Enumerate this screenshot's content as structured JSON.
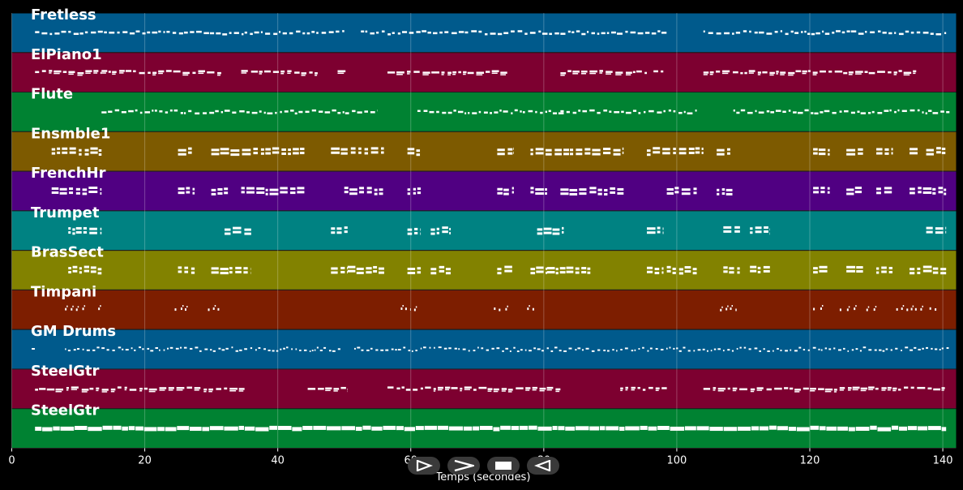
{
  "chart_data": {
    "type": "piano-roll",
    "xlabel": "Temps (secondes)",
    "xlim": [
      0,
      142
    ],
    "xticks": [
      0,
      20,
      40,
      60,
      80,
      100,
      120,
      140
    ],
    "grid": true,
    "tracks": [
      {
        "name": "Fretless",
        "color": "#005a8c",
        "pattern": "line",
        "segments": [
          [
            3.5,
            50
          ],
          [
            52.5,
            98.5
          ],
          [
            104,
            140.5
          ]
        ]
      },
      {
        "name": "ElPiano1",
        "color": "#7d0030",
        "pattern": "chords",
        "segments": [
          [
            3.5,
            13.5
          ],
          [
            13.5,
            31.5
          ],
          [
            34.5,
            46
          ],
          [
            49,
            50.5
          ],
          [
            56.5,
            74.5
          ],
          [
            82.5,
            95.5
          ],
          [
            96.5,
            98
          ],
          [
            104,
            136
          ]
        ]
      },
      {
        "name": "Flute",
        "color": "#008232",
        "pattern": "line",
        "segments": [
          [
            13.5,
            55
          ],
          [
            61,
            83
          ],
          [
            82.5,
            103
          ],
          [
            108.5,
            141
          ]
        ]
      },
      {
        "name": "Ensmble1",
        "color": "#7d5a00",
        "pattern": "blocks",
        "segments": [
          [
            6,
            13.5
          ],
          [
            25,
            27.5
          ],
          [
            30,
            44
          ],
          [
            48,
            56
          ],
          [
            59.5,
            61.5
          ],
          [
            73,
            75.5
          ],
          [
            78,
            92
          ],
          [
            95.5,
            104
          ],
          [
            106,
            108.5
          ],
          [
            120.5,
            123
          ],
          [
            125.5,
            128
          ],
          [
            130,
            132.5
          ],
          [
            135,
            136.5
          ],
          [
            137.5,
            140.5
          ]
        ]
      },
      {
        "name": "FrenchHr",
        "color": "#500082",
        "pattern": "blocks",
        "segments": [
          [
            6,
            13.5
          ],
          [
            25,
            27.5
          ],
          [
            30,
            32.5
          ],
          [
            34.5,
            44
          ],
          [
            50,
            56
          ],
          [
            59.5,
            61.5
          ],
          [
            73,
            75.5
          ],
          [
            78,
            80.5
          ],
          [
            82.5,
            92
          ],
          [
            98.5,
            103
          ],
          [
            106,
            108.5
          ],
          [
            120.5,
            123
          ],
          [
            125.5,
            128
          ],
          [
            130,
            132.5
          ],
          [
            135,
            140.5
          ]
        ]
      },
      {
        "name": "Trumpet",
        "color": "#008282",
        "pattern": "blocks",
        "segments": [
          [
            8.5,
            13.5
          ],
          [
            32,
            36
          ],
          [
            48,
            50.5
          ],
          [
            59.5,
            61.5
          ],
          [
            63,
            66
          ],
          [
            79,
            83
          ],
          [
            95.5,
            98
          ],
          [
            107,
            109.5
          ],
          [
            111,
            114
          ],
          [
            137.5,
            140.5
          ]
        ]
      },
      {
        "name": "BrasSect",
        "color": "#828200",
        "pattern": "blocks",
        "segments": [
          [
            8.5,
            13.5
          ],
          [
            25,
            27.5
          ],
          [
            30,
            36
          ],
          [
            48,
            50.5
          ],
          [
            50.5,
            56
          ],
          [
            59.5,
            61.5
          ],
          [
            63,
            66
          ],
          [
            73,
            75.5
          ],
          [
            78,
            80.5
          ],
          [
            80.5,
            87
          ],
          [
            95.5,
            98
          ],
          [
            98.5,
            103
          ],
          [
            107,
            109.5
          ],
          [
            111,
            114
          ],
          [
            120.5,
            123
          ],
          [
            125.5,
            128
          ],
          [
            130,
            132.5
          ],
          [
            135,
            140.5
          ]
        ]
      },
      {
        "name": "Timpani",
        "color": "#7d1e00",
        "pattern": "dots",
        "segments": [
          [
            8,
            11.5
          ],
          [
            13,
            13.5
          ],
          [
            24.5,
            26.5
          ],
          [
            29.5,
            31.5
          ],
          [
            58.5,
            60
          ],
          [
            60.5,
            61
          ],
          [
            72.5,
            74.5
          ],
          [
            77.5,
            79
          ],
          [
            106.5,
            109
          ],
          [
            120.5,
            122
          ],
          [
            124.5,
            127
          ],
          [
            128.5,
            130
          ],
          [
            133,
            137
          ],
          [
            138,
            139.5
          ]
        ]
      },
      {
        "name": "GM Drums",
        "color": "#005a8c",
        "pattern": "drums",
        "segments": [
          [
            3,
            3.5
          ],
          [
            8,
            49.5
          ],
          [
            51.5,
            141
          ]
        ]
      },
      {
        "name": "SteelGtr",
        "color": "#7d0030",
        "pattern": "chords",
        "segments": [
          [
            3.5,
            35
          ],
          [
            44.5,
            50.5
          ],
          [
            56.5,
            82.5
          ],
          [
            91.5,
            98.5
          ],
          [
            104,
            140.5
          ]
        ]
      },
      {
        "name": "SteelGtr",
        "color": "#008232",
        "pattern": "dense",
        "segments": [
          [
            3.5,
            140.5
          ]
        ]
      }
    ]
  },
  "controls": [
    {
      "name": "play-button",
      "icon": "play-icon"
    },
    {
      "name": "forward-button",
      "icon": "forward-icon"
    },
    {
      "name": "stop-button",
      "icon": "stop-icon"
    },
    {
      "name": "rewind-button",
      "icon": "rewind-icon"
    }
  ]
}
